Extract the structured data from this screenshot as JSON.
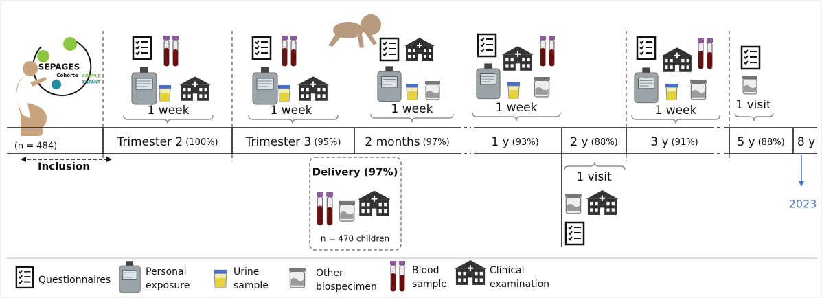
{
  "logo": {
    "name": "SEPAGES",
    "sub": "Cohorte",
    "couple": "COUPLE",
    "enfant": "ENFANT"
  },
  "inclusion": {
    "n": "(n = 484)",
    "label": "Inclusion"
  },
  "periods": [
    {
      "label": "Trimester 2",
      "percent": "(100%)"
    },
    {
      "label": "Trimester 3",
      "percent": "(95%)"
    },
    {
      "label": "2 months",
      "percent": "(97%)"
    },
    {
      "label": "1 y",
      "percent": "(93%)"
    },
    {
      "label": "2 y",
      "percent": "(88%)"
    },
    {
      "label": "3 y",
      "percent": "(91%)"
    },
    {
      "label": "5 y",
      "percent": "(88%)"
    },
    {
      "label": "8 y"
    }
  ],
  "durations": [
    "1 week",
    "1 week",
    "1 week",
    "1 week",
    "1 week",
    "1 visit"
  ],
  "delivery": {
    "title": "Delivery (97%)",
    "n": "n = 470 children"
  },
  "two_year_visit": "1 visit",
  "arrow_label": "2023",
  "legend": [
    {
      "lines": [
        "Questionnaires"
      ]
    },
    {
      "lines": [
        "Personal",
        "exposure"
      ]
    },
    {
      "lines": [
        "Urine",
        "sample"
      ]
    },
    {
      "lines": [
        "Other",
        "biospecimen"
      ]
    },
    {
      "lines": [
        "Blood",
        "sample"
      ]
    },
    {
      "lines": [
        "Clinical",
        "examination"
      ]
    }
  ]
}
